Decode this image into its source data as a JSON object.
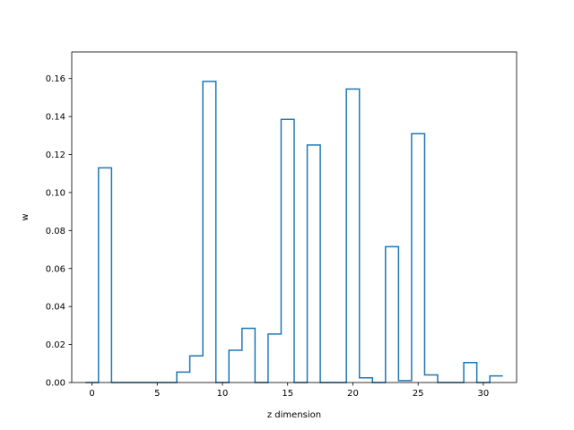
{
  "chart_data": {
    "type": "line",
    "style": "step",
    "xlabel": "z dimension",
    "ylabel": "w",
    "xlim": [
      -1.55,
      32.55
    ],
    "ylim": [
      0,
      0.174
    ],
    "xticks": [
      0,
      5,
      10,
      15,
      20,
      25,
      30
    ],
    "yticks": [
      0.0,
      0.02,
      0.04,
      0.06,
      0.08,
      0.1,
      0.12,
      0.14,
      0.16
    ],
    "ytick_labels": [
      "0.00",
      "0.02",
      "0.04",
      "0.06",
      "0.08",
      "0.10",
      "0.12",
      "0.14",
      "0.16"
    ],
    "grid": false,
    "line_color": "#1f77b4",
    "series": [
      {
        "x": [
          0,
          1,
          2,
          3,
          4,
          5,
          6,
          7,
          8,
          9,
          10,
          11,
          12,
          13,
          14,
          15,
          16,
          17,
          18,
          19,
          20,
          21,
          22,
          23,
          24,
          25,
          26,
          27,
          28,
          29,
          30,
          31
        ],
        "values": [
          0.0,
          0.113,
          0.0,
          0.0,
          0.0,
          0.0,
          0.0,
          0.0055,
          0.014,
          0.1585,
          0.0,
          0.017,
          0.0285,
          0.0,
          0.0255,
          0.1385,
          0.0,
          0.125,
          0.0,
          0.0,
          0.1545,
          0.0025,
          0.0,
          0.0715,
          0.001,
          0.131,
          0.004,
          0.0,
          0.0,
          0.0105,
          0.0,
          0.0035
        ]
      }
    ]
  }
}
